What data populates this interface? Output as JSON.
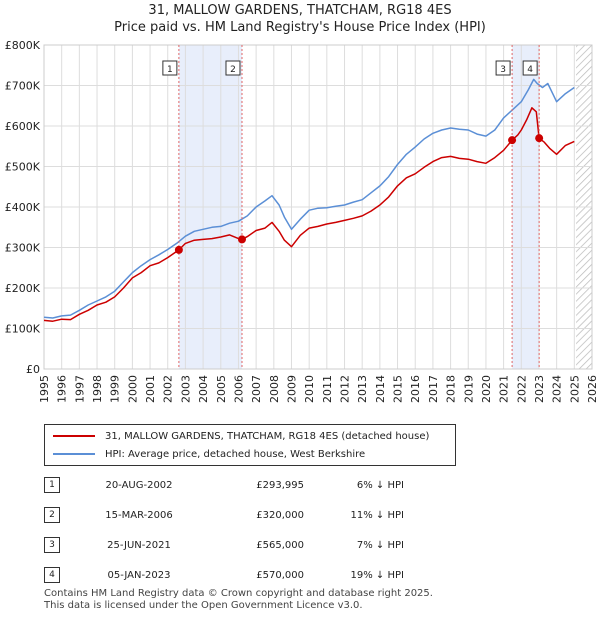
{
  "chart_data": {
    "type": "line",
    "title": "31, MALLOW GARDENS, THATCHAM, RG18 4ES",
    "subtitle": "Price paid vs. HM Land Registry's House Price Index (HPI)",
    "xlabel": "",
    "ylabel": "",
    "xlim": [
      1995,
      2026
    ],
    "ylim": [
      0,
      800000
    ],
    "x_ticks": [
      "1995",
      "1996",
      "1997",
      "1998",
      "1999",
      "2000",
      "2001",
      "2002",
      "2003",
      "2004",
      "2005",
      "2006",
      "2007",
      "2008",
      "2009",
      "2010",
      "2011",
      "2012",
      "2013",
      "2014",
      "2015",
      "2016",
      "2017",
      "2018",
      "2019",
      "2020",
      "2021",
      "2022",
      "2023",
      "2024",
      "2025",
      "2026"
    ],
    "y_ticks": [
      {
        "value": 0,
        "label": "£0"
      },
      {
        "value": 100000,
        "label": "£100K"
      },
      {
        "value": 200000,
        "label": "£200K"
      },
      {
        "value": 300000,
        "label": "£300K"
      },
      {
        "value": 400000,
        "label": "£400K"
      },
      {
        "value": 500000,
        "label": "£500K"
      },
      {
        "value": 600000,
        "label": "£600K"
      },
      {
        "value": 700000,
        "label": "£700K"
      },
      {
        "value": 800000,
        "label": "£800K"
      }
    ],
    "grid": true,
    "shaded_periods": [
      [
        2002.63,
        2006.2
      ],
      [
        2021.48,
        2023.01
      ]
    ],
    "forecast_start": 2025.1,
    "series": [
      {
        "name": "31, MALLOW GARDENS, THATCHAM, RG18 4ES (detached house)",
        "color": "#cc0000",
        "x": [
          1995.0,
          1995.5,
          1996.0,
          1996.5,
          1997.0,
          1997.5,
          1998.0,
          1998.5,
          1999.0,
          1999.5,
          2000.0,
          2000.5,
          2001.0,
          2001.5,
          2002.0,
          2002.63,
          2003.0,
          2003.5,
          2004.0,
          2004.5,
          2005.0,
          2005.5,
          2006.0,
          2006.2,
          2006.5,
          2007.0,
          2007.5,
          2007.9,
          2008.3,
          2008.6,
          2009.0,
          2009.5,
          2010.0,
          2010.5,
          2011.0,
          2011.5,
          2012.0,
          2012.5,
          2013.0,
          2013.5,
          2014.0,
          2014.5,
          2015.0,
          2015.5,
          2016.0,
          2016.5,
          2017.0,
          2017.5,
          2018.0,
          2018.5,
          2019.0,
          2019.5,
          2020.0,
          2020.5,
          2021.0,
          2021.48,
          2021.8,
          2022.0,
          2022.3,
          2022.6,
          2022.85,
          2023.01,
          2023.3,
          2023.6,
          2024.0,
          2024.5,
          2025.0
        ],
        "y": [
          120000,
          118000,
          123000,
          122000,
          135000,
          145000,
          158000,
          165000,
          178000,
          200000,
          225000,
          238000,
          255000,
          262000,
          275000,
          293995,
          310000,
          318000,
          320000,
          322000,
          326000,
          331000,
          322000,
          320000,
          327000,
          342000,
          348000,
          362000,
          340000,
          318000,
          302000,
          330000,
          348000,
          352000,
          358000,
          362000,
          367000,
          372000,
          378000,
          390000,
          405000,
          425000,
          452000,
          472000,
          482000,
          498000,
          512000,
          522000,
          525000,
          520000,
          518000,
          512000,
          508000,
          522000,
          540000,
          565000,
          578000,
          590000,
          615000,
          645000,
          635000,
          570000,
          560000,
          545000,
          530000,
          552000,
          562000
        ]
      },
      {
        "name": "HPI: Average price, detached house, West Berkshire",
        "color": "#5b8fd6",
        "x": [
          1995.0,
          1995.5,
          1996.0,
          1996.5,
          1997.0,
          1997.5,
          1998.0,
          1998.5,
          1999.0,
          1999.5,
          2000.0,
          2000.5,
          2001.0,
          2001.5,
          2002.0,
          2002.5,
          2003.0,
          2003.5,
          2004.0,
          2004.5,
          2005.0,
          2005.5,
          2006.0,
          2006.5,
          2007.0,
          2007.5,
          2007.9,
          2008.3,
          2008.6,
          2009.0,
          2009.5,
          2010.0,
          2010.5,
          2011.0,
          2011.5,
          2012.0,
          2012.5,
          2013.0,
          2013.5,
          2014.0,
          2014.5,
          2015.0,
          2015.5,
          2016.0,
          2016.5,
          2017.0,
          2017.5,
          2018.0,
          2018.5,
          2019.0,
          2019.5,
          2020.0,
          2020.5,
          2021.0,
          2021.5,
          2022.0,
          2022.4,
          2022.7,
          2022.9,
          2023.2,
          2023.5,
          2023.8,
          2024.0,
          2024.5,
          2025.0
        ],
        "y": [
          128000,
          126000,
          131000,
          133000,
          145000,
          158000,
          168000,
          178000,
          192000,
          215000,
          238000,
          255000,
          270000,
          282000,
          295000,
          310000,
          328000,
          340000,
          345000,
          350000,
          352000,
          360000,
          365000,
          378000,
          400000,
          415000,
          428000,
          405000,
          375000,
          345000,
          370000,
          392000,
          397000,
          398000,
          402000,
          405000,
          412000,
          418000,
          435000,
          452000,
          475000,
          505000,
          530000,
          548000,
          568000,
          582000,
          590000,
          595000,
          592000,
          590000,
          580000,
          575000,
          590000,
          620000,
          640000,
          660000,
          690000,
          715000,
          705000,
          695000,
          705000,
          678000,
          660000,
          680000,
          695000
        ]
      }
    ],
    "markers": [
      {
        "label": "1",
        "x": 2002.63,
        "y": 293995
      },
      {
        "label": "2",
        "x": 2006.2,
        "y": 320000
      },
      {
        "label": "3",
        "x": 2021.48,
        "y": 565000
      },
      {
        "label": "4",
        "x": 2023.01,
        "y": 570000
      }
    ]
  },
  "legend": {
    "property": "31, MALLOW GARDENS, THATCHAM, RG18 4ES (detached house)",
    "hpi": "HPI: Average price, detached house, West Berkshire"
  },
  "transactions": [
    {
      "num": "1",
      "date": "20-AUG-2002",
      "price": "£293,995",
      "hpi": "6% ↓ HPI"
    },
    {
      "num": "2",
      "date": "15-MAR-2006",
      "price": "£320,000",
      "hpi": "11% ↓ HPI"
    },
    {
      "num": "3",
      "date": "25-JUN-2021",
      "price": "£565,000",
      "hpi": "7% ↓ HPI"
    },
    {
      "num": "4",
      "date": "05-JAN-2023",
      "price": "£570,000",
      "hpi": "19% ↓ HPI"
    }
  ],
  "footer": {
    "line1": "Contains HM Land Registry data © Crown copyright and database right 2025.",
    "line2": "This data is licensed under the Open Government Licence v3.0."
  }
}
